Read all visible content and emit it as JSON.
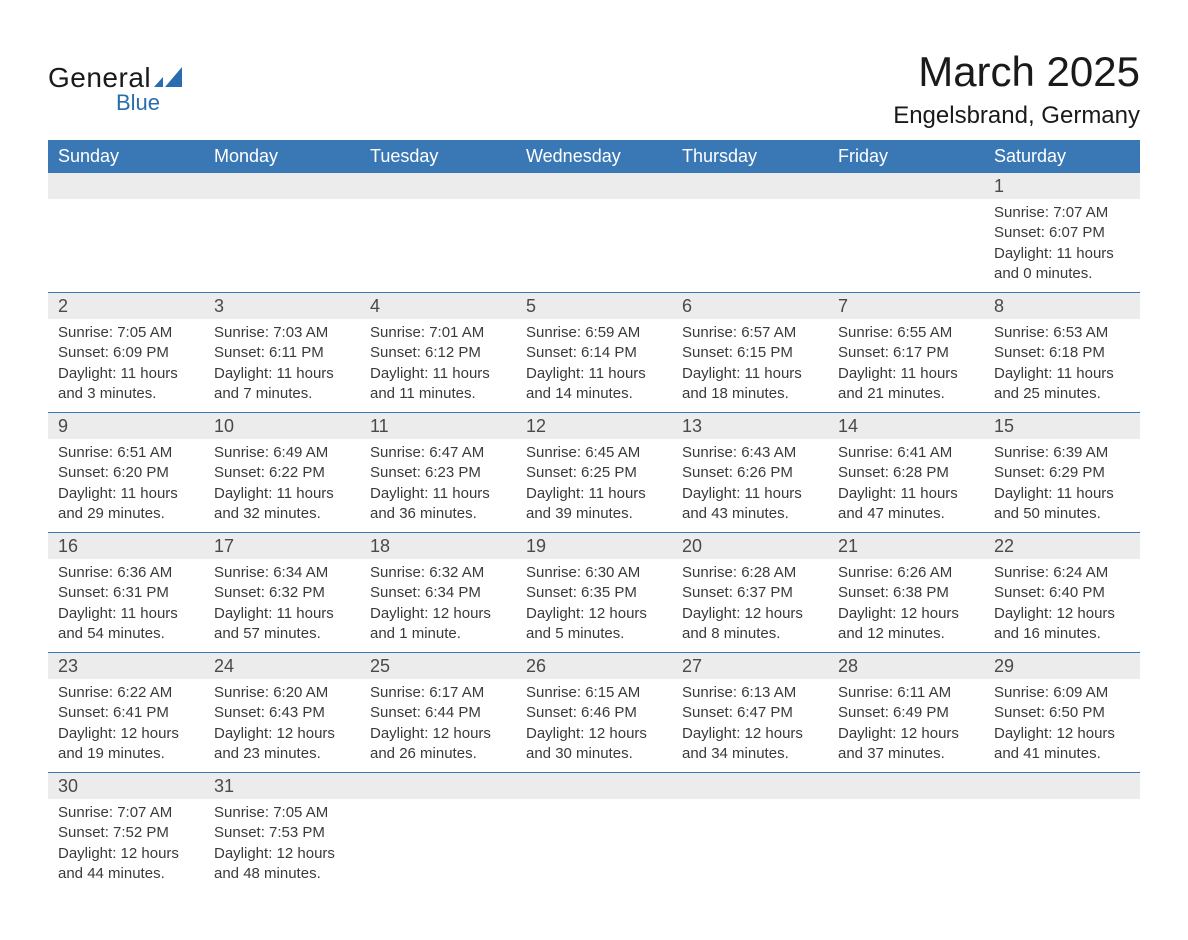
{
  "logo": {
    "line1": "General",
    "line2": "Blue",
    "text_color": "#1a1a1a",
    "accent_color": "#2a6cb0"
  },
  "header": {
    "month_title": "March 2025",
    "location": "Engelsbrand, Germany"
  },
  "colors": {
    "header_bar": "#3a78b5",
    "header_text": "#ffffff",
    "strip_bg": "#ececec",
    "strip_text": "#4a4a4a",
    "body_text": "#3a3a3a",
    "row_divider": "#3a78b5",
    "background": "#ffffff"
  },
  "typography": {
    "month_title_fontsize": 42,
    "location_fontsize": 24,
    "weekday_fontsize": 18,
    "daynum_fontsize": 18,
    "detail_fontsize": 15
  },
  "weekdays": [
    "Sunday",
    "Monday",
    "Tuesday",
    "Wednesday",
    "Thursday",
    "Friday",
    "Saturday"
  ],
  "weeks": [
    [
      {
        "day": "",
        "sunrise": "",
        "sunset": "",
        "daylight": ""
      },
      {
        "day": "",
        "sunrise": "",
        "sunset": "",
        "daylight": ""
      },
      {
        "day": "",
        "sunrise": "",
        "sunset": "",
        "daylight": ""
      },
      {
        "day": "",
        "sunrise": "",
        "sunset": "",
        "daylight": ""
      },
      {
        "day": "",
        "sunrise": "",
        "sunset": "",
        "daylight": ""
      },
      {
        "day": "",
        "sunrise": "",
        "sunset": "",
        "daylight": ""
      },
      {
        "day": "1",
        "sunrise": "Sunrise: 7:07 AM",
        "sunset": "Sunset: 6:07 PM",
        "daylight": "Daylight: 11 hours and 0 minutes."
      }
    ],
    [
      {
        "day": "2",
        "sunrise": "Sunrise: 7:05 AM",
        "sunset": "Sunset: 6:09 PM",
        "daylight": "Daylight: 11 hours and 3 minutes."
      },
      {
        "day": "3",
        "sunrise": "Sunrise: 7:03 AM",
        "sunset": "Sunset: 6:11 PM",
        "daylight": "Daylight: 11 hours and 7 minutes."
      },
      {
        "day": "4",
        "sunrise": "Sunrise: 7:01 AM",
        "sunset": "Sunset: 6:12 PM",
        "daylight": "Daylight: 11 hours and 11 minutes."
      },
      {
        "day": "5",
        "sunrise": "Sunrise: 6:59 AM",
        "sunset": "Sunset: 6:14 PM",
        "daylight": "Daylight: 11 hours and 14 minutes."
      },
      {
        "day": "6",
        "sunrise": "Sunrise: 6:57 AM",
        "sunset": "Sunset: 6:15 PM",
        "daylight": "Daylight: 11 hours and 18 minutes."
      },
      {
        "day": "7",
        "sunrise": "Sunrise: 6:55 AM",
        "sunset": "Sunset: 6:17 PM",
        "daylight": "Daylight: 11 hours and 21 minutes."
      },
      {
        "day": "8",
        "sunrise": "Sunrise: 6:53 AM",
        "sunset": "Sunset: 6:18 PM",
        "daylight": "Daylight: 11 hours and 25 minutes."
      }
    ],
    [
      {
        "day": "9",
        "sunrise": "Sunrise: 6:51 AM",
        "sunset": "Sunset: 6:20 PM",
        "daylight": "Daylight: 11 hours and 29 minutes."
      },
      {
        "day": "10",
        "sunrise": "Sunrise: 6:49 AM",
        "sunset": "Sunset: 6:22 PM",
        "daylight": "Daylight: 11 hours and 32 minutes."
      },
      {
        "day": "11",
        "sunrise": "Sunrise: 6:47 AM",
        "sunset": "Sunset: 6:23 PM",
        "daylight": "Daylight: 11 hours and 36 minutes."
      },
      {
        "day": "12",
        "sunrise": "Sunrise: 6:45 AM",
        "sunset": "Sunset: 6:25 PM",
        "daylight": "Daylight: 11 hours and 39 minutes."
      },
      {
        "day": "13",
        "sunrise": "Sunrise: 6:43 AM",
        "sunset": "Sunset: 6:26 PM",
        "daylight": "Daylight: 11 hours and 43 minutes."
      },
      {
        "day": "14",
        "sunrise": "Sunrise: 6:41 AM",
        "sunset": "Sunset: 6:28 PM",
        "daylight": "Daylight: 11 hours and 47 minutes."
      },
      {
        "day": "15",
        "sunrise": "Sunrise: 6:39 AM",
        "sunset": "Sunset: 6:29 PM",
        "daylight": "Daylight: 11 hours and 50 minutes."
      }
    ],
    [
      {
        "day": "16",
        "sunrise": "Sunrise: 6:36 AM",
        "sunset": "Sunset: 6:31 PM",
        "daylight": "Daylight: 11 hours and 54 minutes."
      },
      {
        "day": "17",
        "sunrise": "Sunrise: 6:34 AM",
        "sunset": "Sunset: 6:32 PM",
        "daylight": "Daylight: 11 hours and 57 minutes."
      },
      {
        "day": "18",
        "sunrise": "Sunrise: 6:32 AM",
        "sunset": "Sunset: 6:34 PM",
        "daylight": "Daylight: 12 hours and 1 minute."
      },
      {
        "day": "19",
        "sunrise": "Sunrise: 6:30 AM",
        "sunset": "Sunset: 6:35 PM",
        "daylight": "Daylight: 12 hours and 5 minutes."
      },
      {
        "day": "20",
        "sunrise": "Sunrise: 6:28 AM",
        "sunset": "Sunset: 6:37 PM",
        "daylight": "Daylight: 12 hours and 8 minutes."
      },
      {
        "day": "21",
        "sunrise": "Sunrise: 6:26 AM",
        "sunset": "Sunset: 6:38 PM",
        "daylight": "Daylight: 12 hours and 12 minutes."
      },
      {
        "day": "22",
        "sunrise": "Sunrise: 6:24 AM",
        "sunset": "Sunset: 6:40 PM",
        "daylight": "Daylight: 12 hours and 16 minutes."
      }
    ],
    [
      {
        "day": "23",
        "sunrise": "Sunrise: 6:22 AM",
        "sunset": "Sunset: 6:41 PM",
        "daylight": "Daylight: 12 hours and 19 minutes."
      },
      {
        "day": "24",
        "sunrise": "Sunrise: 6:20 AM",
        "sunset": "Sunset: 6:43 PM",
        "daylight": "Daylight: 12 hours and 23 minutes."
      },
      {
        "day": "25",
        "sunrise": "Sunrise: 6:17 AM",
        "sunset": "Sunset: 6:44 PM",
        "daylight": "Daylight: 12 hours and 26 minutes."
      },
      {
        "day": "26",
        "sunrise": "Sunrise: 6:15 AM",
        "sunset": "Sunset: 6:46 PM",
        "daylight": "Daylight: 12 hours and 30 minutes."
      },
      {
        "day": "27",
        "sunrise": "Sunrise: 6:13 AM",
        "sunset": "Sunset: 6:47 PM",
        "daylight": "Daylight: 12 hours and 34 minutes."
      },
      {
        "day": "28",
        "sunrise": "Sunrise: 6:11 AM",
        "sunset": "Sunset: 6:49 PM",
        "daylight": "Daylight: 12 hours and 37 minutes."
      },
      {
        "day": "29",
        "sunrise": "Sunrise: 6:09 AM",
        "sunset": "Sunset: 6:50 PM",
        "daylight": "Daylight: 12 hours and 41 minutes."
      }
    ],
    [
      {
        "day": "30",
        "sunrise": "Sunrise: 7:07 AM",
        "sunset": "Sunset: 7:52 PM",
        "daylight": "Daylight: 12 hours and 44 minutes."
      },
      {
        "day": "31",
        "sunrise": "Sunrise: 7:05 AM",
        "sunset": "Sunset: 7:53 PM",
        "daylight": "Daylight: 12 hours and 48 minutes."
      },
      {
        "day": "",
        "sunrise": "",
        "sunset": "",
        "daylight": ""
      },
      {
        "day": "",
        "sunrise": "",
        "sunset": "",
        "daylight": ""
      },
      {
        "day": "",
        "sunrise": "",
        "sunset": "",
        "daylight": ""
      },
      {
        "day": "",
        "sunrise": "",
        "sunset": "",
        "daylight": ""
      },
      {
        "day": "",
        "sunrise": "",
        "sunset": "",
        "daylight": ""
      }
    ]
  ]
}
